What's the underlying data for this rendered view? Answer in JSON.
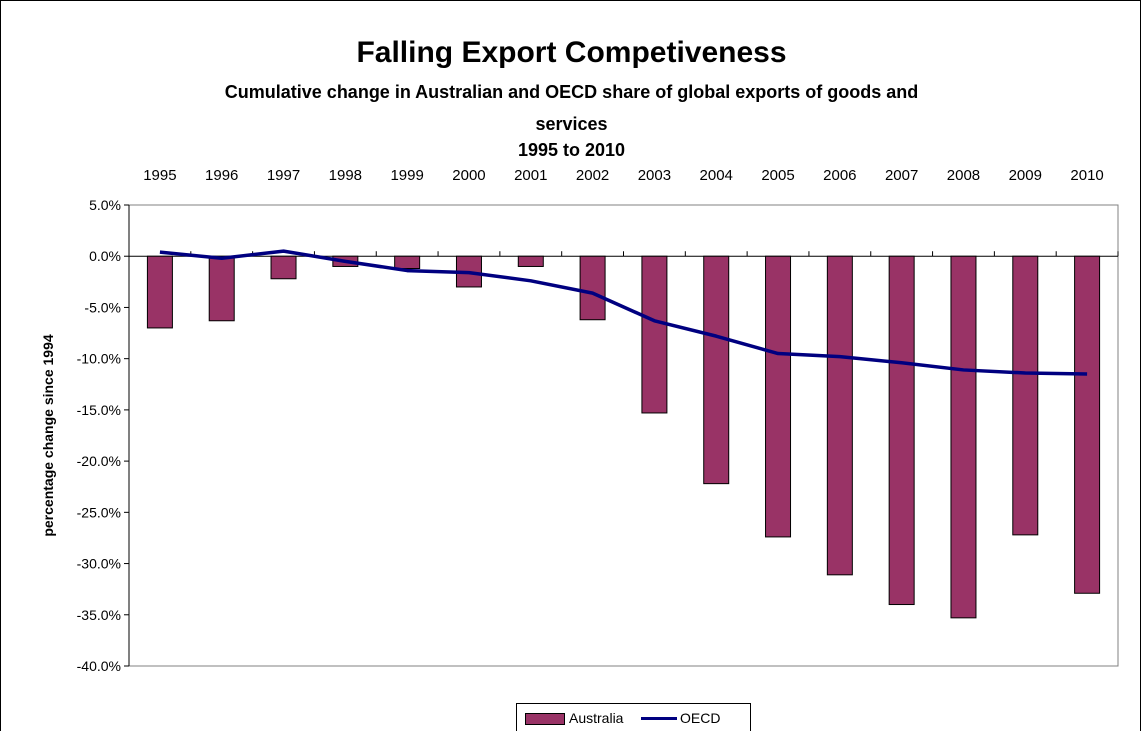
{
  "chart_data": {
    "type": "bar",
    "title": "Falling Export Competiveness",
    "subtitle_lines": [
      "Cumulative change in Australian and OECD share of global exports of goods and",
      "services",
      "1995 to 2010"
    ],
    "ylabel": "percentage change since 1994",
    "xlabel": "",
    "categories": [
      "1995",
      "1996",
      "1997",
      "1998",
      "1999",
      "2000",
      "2001",
      "2002",
      "2003",
      "2004",
      "2005",
      "2006",
      "2007",
      "2008",
      "2009",
      "2010"
    ],
    "ylim": [
      -40,
      5
    ],
    "y_ticks": [
      5,
      0,
      -5,
      -10,
      -15,
      -20,
      -25,
      -30,
      -35,
      -40
    ],
    "y_tick_labels": [
      "5.0%",
      "0.0%",
      "-5.0%",
      "-10.0%",
      "-15.0%",
      "-20.0%",
      "-25.0%",
      "-30.0%",
      "-35.0%",
      "-40.0%"
    ],
    "x_axis_position": "top",
    "grid": false,
    "legend_position": "bottom",
    "series": [
      {
        "name": "Australia",
        "kind": "bar",
        "color": "#993366",
        "values": [
          -7.0,
          -6.3,
          -2.2,
          -1.0,
          -1.2,
          -3.0,
          -1.0,
          -6.2,
          -15.3,
          -22.2,
          -27.4,
          -31.1,
          -34.0,
          -35.3,
          -27.2,
          -32.9
        ]
      },
      {
        "name": "OECD",
        "kind": "line",
        "color": "#000080",
        "values": [
          0.4,
          -0.2,
          0.5,
          -0.5,
          -1.4,
          -1.6,
          -2.4,
          -3.6,
          -6.3,
          -7.8,
          -9.5,
          -9.8,
          -10.4,
          -11.1,
          -11.4,
          -11.5
        ]
      }
    ]
  }
}
